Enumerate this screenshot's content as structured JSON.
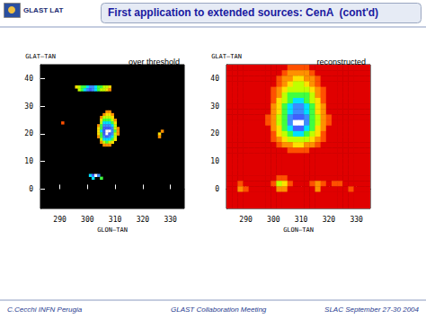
{
  "slide": {
    "logo_text": "GLAST LAT",
    "title": "First application to extended sources: CenA  (cont'd)",
    "footer": [
      "C.Cecchi INFN Perugia",
      "GLAST Collaboration Meeting",
      "SLAC September 27-30 2004"
    ]
  },
  "chart_data": [
    {
      "type": "heatmap",
      "title": "over threshold",
      "x_label": "GLON—TAN",
      "y_label": "GLAT—TAN",
      "xlim": [
        283,
        335
      ],
      "xticks": [
        290,
        300,
        310,
        320,
        330
      ],
      "ylim": [
        -7,
        45
      ],
      "yticks": [
        0,
        10,
        20,
        30,
        40
      ],
      "cell_size": [
        1,
        1
      ],
      "color_range": [
        1,
        10
      ],
      "cells": [
        [
          307,
          28,
          3
        ],
        [
          308,
          28,
          3
        ],
        [
          306,
          27,
          3
        ],
        [
          307,
          27,
          4
        ],
        [
          308,
          27,
          4
        ],
        [
          309,
          27,
          3
        ],
        [
          305,
          26,
          3
        ],
        [
          306,
          26,
          5
        ],
        [
          307,
          26,
          5
        ],
        [
          308,
          26,
          5
        ],
        [
          309,
          26,
          4
        ],
        [
          305,
          25,
          4
        ],
        [
          306,
          25,
          6
        ],
        [
          307,
          25,
          6
        ],
        [
          308,
          25,
          6
        ],
        [
          309,
          25,
          5
        ],
        [
          310,
          25,
          3
        ],
        [
          305,
          24,
          5
        ],
        [
          306,
          24,
          7
        ],
        [
          307,
          24,
          7
        ],
        [
          308,
          24,
          7
        ],
        [
          309,
          24,
          6
        ],
        [
          310,
          24,
          4
        ],
        [
          304,
          23,
          3
        ],
        [
          305,
          23,
          6
        ],
        [
          306,
          23,
          8
        ],
        [
          307,
          23,
          8
        ],
        [
          308,
          23,
          8
        ],
        [
          309,
          23,
          7
        ],
        [
          310,
          23,
          5
        ],
        [
          304,
          22,
          4
        ],
        [
          305,
          22,
          6
        ],
        [
          306,
          22,
          9
        ],
        [
          307,
          22,
          9
        ],
        [
          308,
          22,
          9
        ],
        [
          309,
          22,
          8
        ],
        [
          310,
          22,
          5
        ],
        [
          311,
          22,
          3
        ],
        [
          304,
          21,
          4
        ],
        [
          305,
          21,
          7
        ],
        [
          306,
          21,
          9
        ],
        [
          307,
          21,
          10
        ],
        [
          308,
          21,
          10
        ],
        [
          309,
          21,
          8
        ],
        [
          310,
          21,
          6
        ],
        [
          311,
          21,
          3
        ],
        [
          304,
          20,
          4
        ],
        [
          305,
          20,
          6
        ],
        [
          306,
          20,
          9
        ],
        [
          307,
          20,
          10
        ],
        [
          308,
          20,
          9
        ],
        [
          309,
          20,
          8
        ],
        [
          310,
          20,
          5
        ],
        [
          311,
          20,
          3
        ],
        [
          304,
          19,
          3
        ],
        [
          305,
          19,
          6
        ],
        [
          306,
          19,
          8
        ],
        [
          307,
          19,
          9
        ],
        [
          308,
          19,
          8
        ],
        [
          309,
          19,
          7
        ],
        [
          310,
          19,
          5
        ],
        [
          305,
          18,
          5
        ],
        [
          306,
          18,
          7
        ],
        [
          307,
          18,
          7
        ],
        [
          308,
          18,
          7
        ],
        [
          309,
          18,
          6
        ],
        [
          310,
          18,
          4
        ],
        [
          305,
          17,
          3
        ],
        [
          306,
          17,
          5
        ],
        [
          307,
          17,
          6
        ],
        [
          308,
          17,
          5
        ],
        [
          309,
          17,
          4
        ],
        [
          306,
          16,
          3
        ],
        [
          307,
          16,
          3
        ],
        [
          308,
          16,
          3
        ],
        [
          296,
          37,
          4
        ],
        [
          297,
          37,
          5
        ],
        [
          298,
          37,
          6
        ],
        [
          299,
          37,
          6
        ],
        [
          300,
          37,
          7
        ],
        [
          301,
          37,
          8
        ],
        [
          302,
          37,
          8
        ],
        [
          303,
          37,
          7
        ],
        [
          304,
          37,
          6
        ],
        [
          305,
          37,
          6
        ],
        [
          306,
          37,
          5
        ],
        [
          307,
          37,
          5
        ],
        [
          308,
          37,
          4
        ],
        [
          297,
          36,
          5
        ],
        [
          298,
          36,
          6
        ],
        [
          299,
          36,
          7
        ],
        [
          300,
          36,
          8
        ],
        [
          301,
          36,
          9
        ],
        [
          302,
          36,
          8
        ],
        [
          303,
          36,
          7
        ],
        [
          304,
          36,
          6
        ],
        [
          305,
          36,
          5
        ],
        [
          306,
          36,
          5
        ],
        [
          307,
          36,
          4
        ],
        [
          308,
          36,
          3
        ],
        [
          291,
          24,
          2
        ],
        [
          326,
          20,
          4
        ],
        [
          327,
          21,
          3
        ],
        [
          326,
          19,
          3
        ],
        [
          301,
          5,
          7
        ],
        [
          302,
          5,
          9
        ],
        [
          303,
          5,
          10
        ],
        [
          304,
          5,
          8
        ],
        [
          305,
          4,
          6
        ],
        [
          302,
          4,
          7
        ]
      ]
    },
    {
      "type": "heatmap",
      "title": "reconstructed",
      "x_label": "GLON—TAN",
      "y_label": "GLAT—TAN",
      "xlim": [
        283,
        335
      ],
      "xticks": [
        290,
        300,
        310,
        320,
        330
      ],
      "ylim": [
        -7,
        45
      ],
      "yticks": [
        0,
        10,
        20,
        30,
        40
      ],
      "cell_size": [
        2,
        2
      ],
      "color_range": [
        1,
        10
      ],
      "x": [
        284,
        286,
        288,
        290,
        292,
        294,
        296,
        298,
        300,
        302,
        304,
        306,
        308,
        310,
        312,
        314,
        316,
        318,
        320,
        322,
        324,
        326,
        328,
        330,
        332,
        334
      ],
      "y": [
        44,
        42,
        40,
        38,
        36,
        34,
        32,
        30,
        28,
        26,
        24,
        22,
        20,
        18,
        16,
        14,
        12,
        10,
        8,
        6,
        4,
        2,
        0,
        -2,
        -4,
        -6
      ],
      "z": [
        [
          0,
          0,
          0,
          0,
          0,
          0,
          0,
          0,
          0,
          1,
          1,
          2,
          2,
          2,
          2,
          1,
          1,
          0,
          0,
          0,
          0,
          0,
          0,
          0,
          0,
          0
        ],
        [
          0,
          0,
          0,
          0,
          0,
          0,
          0,
          0,
          0,
          1,
          2,
          3,
          3,
          3,
          3,
          2,
          1,
          0,
          0,
          0,
          0,
          0,
          0,
          0,
          0,
          0
        ],
        [
          0,
          0,
          0,
          0,
          0,
          0,
          0,
          0,
          1,
          2,
          3,
          3,
          4,
          4,
          3,
          3,
          2,
          1,
          0,
          0,
          0,
          0,
          0,
          0,
          0,
          0
        ],
        [
          0,
          0,
          0,
          0,
          0,
          0,
          0,
          0,
          1,
          2,
          3,
          4,
          5,
          5,
          4,
          3,
          2,
          1,
          0,
          0,
          0,
          0,
          0,
          0,
          0,
          0
        ],
        [
          0,
          0,
          0,
          0,
          0,
          0,
          0,
          0,
          2,
          3,
          4,
          5,
          5,
          5,
          5,
          4,
          3,
          2,
          0,
          0,
          0,
          0,
          0,
          0,
          0,
          0
        ],
        [
          0,
          0,
          0,
          0,
          0,
          0,
          0,
          1,
          2,
          3,
          5,
          6,
          6,
          6,
          6,
          5,
          3,
          2,
          1,
          0,
          0,
          0,
          0,
          0,
          0,
          0
        ],
        [
          0,
          0,
          0,
          0,
          0,
          0,
          0,
          1,
          2,
          4,
          5,
          6,
          7,
          7,
          6,
          5,
          4,
          2,
          1,
          0,
          0,
          0,
          0,
          0,
          0,
          0
        ],
        [
          0,
          0,
          0,
          0,
          0,
          0,
          0,
          1,
          3,
          4,
          6,
          7,
          8,
          8,
          7,
          6,
          4,
          3,
          1,
          0,
          0,
          0,
          0,
          0,
          0,
          0
        ],
        [
          0,
          0,
          0,
          0,
          0,
          0,
          0,
          1,
          3,
          4,
          6,
          7,
          8,
          8,
          7,
          6,
          4,
          3,
          1,
          0,
          0,
          0,
          0,
          0,
          0,
          0
        ],
        [
          0,
          0,
          0,
          0,
          0,
          0,
          0,
          2,
          3,
          5,
          6,
          8,
          9,
          9,
          8,
          6,
          5,
          3,
          2,
          0,
          0,
          0,
          0,
          0,
          0,
          0
        ],
        [
          0,
          0,
          0,
          0,
          0,
          0,
          0,
          2,
          3,
          5,
          6,
          8,
          10,
          10,
          8,
          6,
          5,
          3,
          2,
          0,
          0,
          0,
          0,
          0,
          0,
          0
        ],
        [
          0,
          0,
          0,
          0,
          0,
          0,
          0,
          1,
          3,
          4,
          6,
          7,
          9,
          9,
          7,
          6,
          4,
          3,
          1,
          0,
          0,
          0,
          0,
          0,
          0,
          0
        ],
        [
          0,
          0,
          0,
          0,
          0,
          0,
          0,
          1,
          2,
          4,
          5,
          6,
          7,
          7,
          6,
          5,
          4,
          2,
          1,
          0,
          0,
          0,
          0,
          0,
          0,
          0
        ],
        [
          0,
          0,
          0,
          0,
          0,
          0,
          0,
          0,
          2,
          3,
          4,
          5,
          5,
          5,
          5,
          4,
          3,
          2,
          0,
          0,
          0,
          0,
          0,
          0,
          0,
          0
        ],
        [
          0,
          0,
          0,
          0,
          0,
          0,
          0,
          0,
          1,
          2,
          3,
          3,
          4,
          4,
          3,
          3,
          2,
          1,
          0,
          0,
          0,
          0,
          0,
          0,
          0,
          0
        ],
        [
          0,
          0,
          0,
          0,
          0,
          0,
          0,
          0,
          0,
          1,
          1,
          2,
          2,
          2,
          2,
          1,
          1,
          0,
          0,
          0,
          0,
          0,
          0,
          0,
          0,
          0
        ],
        [
          0,
          0,
          0,
          0,
          0,
          0,
          0,
          0,
          0,
          0,
          0,
          0,
          1,
          1,
          0,
          0,
          0,
          0,
          0,
          0,
          0,
          0,
          0,
          0,
          0,
          0
        ],
        [
          0,
          0,
          0,
          0,
          0,
          0,
          0,
          0,
          0,
          0,
          0,
          0,
          0,
          0,
          0,
          0,
          0,
          0,
          0,
          0,
          0,
          0,
          0,
          0,
          0,
          0
        ],
        [
          0,
          0,
          0,
          0,
          0,
          0,
          0,
          0,
          0,
          0,
          0,
          0,
          0,
          0,
          0,
          0,
          0,
          0,
          0,
          0,
          0,
          0,
          0,
          0,
          0,
          0
        ],
        [
          0,
          0,
          0,
          0,
          0,
          0,
          0,
          0,
          0,
          0,
          0,
          0,
          0,
          0,
          0,
          0,
          0,
          0,
          0,
          0,
          0,
          0,
          0,
          0,
          0,
          0
        ],
        [
          0,
          0,
          0,
          0,
          0,
          0,
          0,
          0,
          0,
          2,
          2,
          0,
          0,
          0,
          0,
          0,
          0,
          0,
          0,
          0,
          0,
          0,
          0,
          0,
          0,
          0
        ],
        [
          0,
          0,
          2,
          1,
          0,
          0,
          0,
          1,
          2,
          5,
          4,
          2,
          1,
          0,
          0,
          2,
          3,
          2,
          0,
          2,
          2,
          0,
          1,
          0,
          0,
          0
        ],
        [
          0,
          1,
          3,
          2,
          0,
          0,
          0,
          0,
          1,
          3,
          3,
          1,
          0,
          0,
          0,
          1,
          3,
          1,
          0,
          1,
          1,
          0,
          2,
          1,
          0,
          0
        ],
        [
          0,
          0,
          1,
          0,
          0,
          0,
          0,
          0,
          0,
          1,
          0,
          0,
          0,
          0,
          0,
          0,
          0,
          0,
          0,
          0,
          0,
          0,
          0,
          0,
          0,
          0
        ],
        [
          0,
          0,
          0,
          0,
          0,
          0,
          0,
          0,
          0,
          0,
          0,
          0,
          0,
          0,
          0,
          0,
          0,
          0,
          0,
          0,
          0,
          0,
          0,
          0,
          0,
          0
        ],
        [
          0,
          0,
          0,
          0,
          0,
          0,
          0,
          0,
          0,
          0,
          0,
          0,
          0,
          0,
          0,
          0,
          0,
          0,
          0,
          0,
          0,
          0,
          0,
          0,
          0,
          0
        ]
      ]
    }
  ]
}
